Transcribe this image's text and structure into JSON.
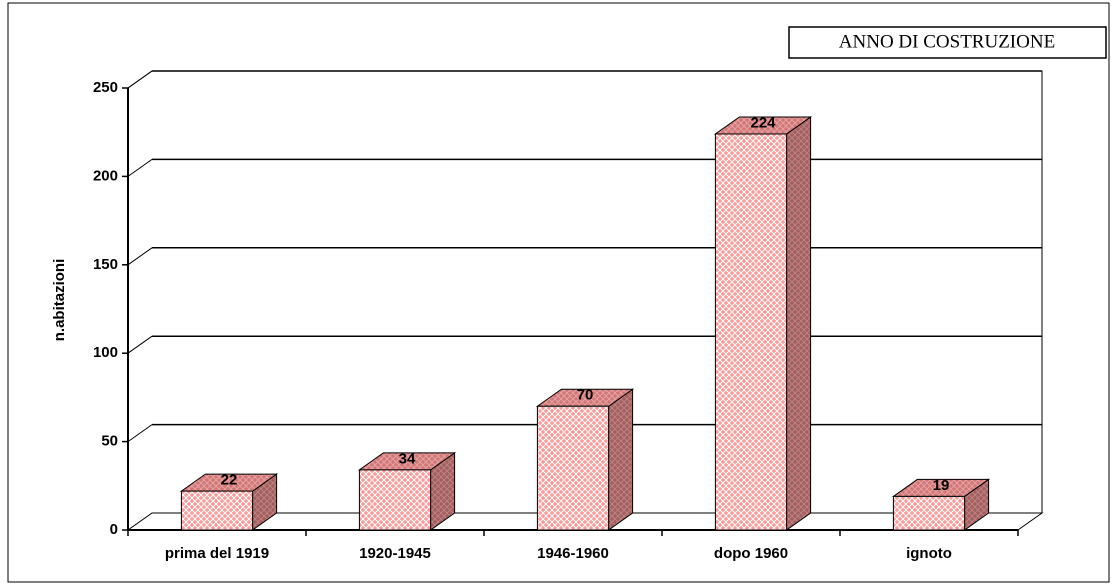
{
  "chart_data": {
    "type": "bar3d",
    "title": "ANNO DI COSTRUZIONE",
    "y_label": "n.abitazioni",
    "categories": [
      "prima del 1919",
      "1920-1945",
      "1946-1960",
      "dopo 1960",
      "ignoto"
    ],
    "values": [
      22,
      34,
      70,
      224,
      19
    ],
    "color": "#ff9999",
    "ylim": [
      0,
      250
    ],
    "yticks": [
      0,
      50,
      100,
      150,
      200,
      250
    ],
    "grid": true
  }
}
